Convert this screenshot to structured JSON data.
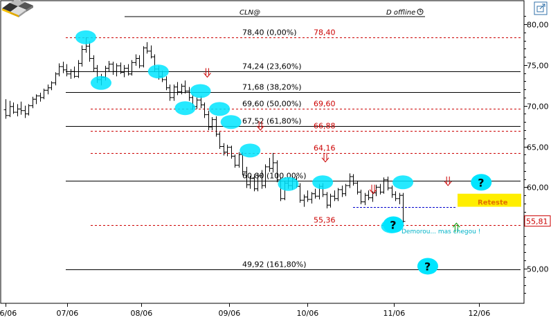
{
  "header": {
    "symbol": "CLN@",
    "status": "D offline",
    "clock_icon": "clock-icon",
    "logo_icon": "checkered-logo-icon",
    "corner_icon": "expand-icon"
  },
  "chart_data": {
    "type": "candlestick",
    "y_axis": {
      "ylim": [
        46.0,
        81.5
      ],
      "tick_labels": [
        "80,00",
        "75,00",
        "70,00",
        "65,00",
        "60,00",
        "50,00"
      ],
      "tick_values": [
        80,
        75,
        70,
        65,
        60,
        50
      ],
      "current_price_label": "55,81",
      "current_price": 55.81
    },
    "x_axis": {
      "tick_labels": [
        "06/06",
        "07/06",
        "08/06",
        "09/06",
        "10/06",
        "11/06",
        "12/06"
      ],
      "tick_index": [
        0,
        16.1,
        35.5,
        58.5,
        78.9,
        101.6,
        123.9
      ]
    },
    "fib_levels": [
      {
        "label": "78,40 (0,00%)",
        "price": 78.4,
        "style": "dashed",
        "color": "#cc0000",
        "extra": "78,40"
      },
      {
        "label": "74,24 (23,60%)",
        "price": 74.24,
        "style": "solid",
        "color": "#000000"
      },
      {
        "label": "71,68 (38,20%)",
        "price": 71.68,
        "style": "solid",
        "color": "#000000"
      },
      {
        "label": "69,60 (50,00%)",
        "price": 69.6,
        "style": "dashed",
        "color": "#cc0000",
        "extra": "69,60"
      },
      {
        "label": "67,52 (61,80%)",
        "price": 67.52,
        "style": "solid",
        "color": "#000000"
      },
      {
        "label": "",
        "price": 66.88,
        "style": "dashed",
        "color": "#cc0000",
        "extra": "66,88"
      },
      {
        "label": "",
        "price": 64.16,
        "style": "dashed",
        "color": "#cc0000",
        "extra": "64,16"
      },
      {
        "label": "60,80 (100,00%)",
        "price": 60.8,
        "style": "solid",
        "color": "#000000"
      },
      {
        "label": "",
        "price": 55.36,
        "style": "dashed",
        "color": "#cc0000",
        "extra": "55,36"
      },
      {
        "label": "49,92 (161,80%)",
        "price": 49.92,
        "style": "solid",
        "color": "#000000"
      }
    ],
    "support_line": {
      "price": 57.6,
      "style": "dashed",
      "color": "#0000cc"
    },
    "resistance_box": {
      "label": "Reteste",
      "price_top": 58.3,
      "price_bottom": 57.6,
      "color": "#ffee00"
    },
    "annotation_text": "Demorou... mas chegou !",
    "question_mark": "?",
    "bars": [
      [
        69.5,
        70.8,
        68.4,
        68.8
      ],
      [
        68.8,
        70.6,
        68.6,
        69.9
      ],
      [
        69.9,
        70.4,
        69.0,
        69.2
      ],
      [
        69.2,
        70.2,
        68.7,
        69.6
      ],
      [
        69.6,
        70.5,
        68.9,
        69.4
      ],
      [
        69.4,
        70.0,
        68.5,
        69.0
      ],
      [
        69.0,
        70.2,
        68.8,
        70.0
      ],
      [
        70.0,
        71.1,
        69.7,
        70.8
      ],
      [
        70.8,
        71.4,
        70.2,
        71.2
      ],
      [
        71.2,
        71.6,
        70.5,
        71.0
      ],
      [
        71.0,
        72.1,
        70.8,
        71.9
      ],
      [
        71.9,
        72.6,
        71.4,
        72.2
      ],
      [
        72.2,
        73.0,
        71.9,
        72.8
      ],
      [
        72.8,
        74.1,
        72.5,
        73.9
      ],
      [
        73.9,
        75.2,
        73.6,
        74.8
      ],
      [
        74.8,
        75.4,
        74.0,
        74.4
      ],
      [
        74.4,
        75.1,
        73.6,
        73.9
      ],
      [
        73.9,
        74.5,
        73.3,
        74.2
      ],
      [
        74.2,
        74.8,
        73.4,
        73.6
      ],
      [
        73.6,
        75.6,
        73.4,
        75.2
      ],
      [
        75.2,
        77.4,
        74.8,
        76.9
      ],
      [
        76.9,
        78.4,
        76.5,
        77.3
      ],
      [
        77.3,
        77.9,
        75.4,
        75.8
      ],
      [
        75.8,
        76.2,
        74.2,
        74.6
      ],
      [
        74.6,
        75.0,
        72.8,
        73.2
      ],
      [
        73.2,
        73.9,
        72.5,
        73.5
      ],
      [
        73.5,
        74.9,
        73.1,
        74.6
      ],
      [
        74.6,
        75.5,
        74.2,
        75.1
      ],
      [
        75.1,
        75.4,
        73.8,
        74.2
      ],
      [
        74.2,
        75.2,
        73.6,
        74.9
      ],
      [
        74.9,
        75.3,
        73.9,
        74.1
      ],
      [
        74.1,
        75.0,
        73.5,
        74.6
      ],
      [
        74.6,
        75.1,
        73.7,
        73.9
      ],
      [
        73.9,
        75.6,
        73.7,
        75.3
      ],
      [
        75.3,
        76.3,
        74.9,
        75.8
      ],
      [
        75.8,
        76.2,
        74.6,
        74.9
      ],
      [
        74.9,
        77.3,
        74.7,
        77.1
      ],
      [
        77.1,
        77.8,
        76.4,
        76.7
      ],
      [
        76.7,
        77.4,
        75.8,
        76.0
      ],
      [
        76.0,
        76.3,
        74.2,
        74.5
      ],
      [
        74.5,
        74.9,
        73.2,
        73.6
      ],
      [
        73.6,
        74.3,
        72.9,
        73.2
      ],
      [
        73.2,
        73.6,
        71.9,
        72.2
      ],
      [
        72.2,
        72.6,
        70.6,
        71.0
      ],
      [
        71.0,
        72.6,
        70.6,
        72.3
      ],
      [
        72.3,
        72.9,
        71.3,
        71.7
      ],
      [
        71.7,
        72.7,
        71.4,
        72.4
      ],
      [
        72.4,
        73.1,
        71.5,
        71.8
      ],
      [
        71.8,
        72.3,
        70.6,
        71.0
      ],
      [
        71.0,
        71.4,
        69.5,
        69.9
      ],
      [
        69.9,
        71.0,
        69.6,
        70.7
      ],
      [
        70.7,
        71.2,
        69.7,
        70.1
      ],
      [
        70.1,
        70.4,
        68.5,
        68.9
      ],
      [
        68.9,
        69.4,
        67.0,
        67.4
      ],
      [
        67.4,
        68.6,
        67.0,
        68.3
      ],
      [
        68.3,
        68.7,
        66.2,
        66.5
      ],
      [
        66.5,
        66.8,
        64.7,
        65.0
      ],
      [
        65.0,
        65.4,
        63.9,
        64.3
      ],
      [
        64.3,
        65.2,
        63.8,
        64.9
      ],
      [
        64.9,
        65.1,
        63.5,
        63.8
      ],
      [
        63.8,
        64.0,
        62.4,
        62.7
      ],
      [
        62.7,
        64.3,
        62.4,
        64.0
      ],
      [
        64.0,
        64.3,
        61.5,
        61.9
      ],
      [
        61.9,
        62.5,
        59.9,
        60.3
      ],
      [
        60.3,
        61.4,
        59.8,
        61.1
      ],
      [
        61.1,
        61.6,
        59.5,
        59.8
      ],
      [
        59.8,
        61.7,
        59.5,
        61.4
      ],
      [
        61.4,
        62.1,
        59.8,
        60.2
      ],
      [
        60.2,
        62.8,
        59.9,
        62.5
      ],
      [
        62.5,
        63.6,
        61.9,
        62.3
      ],
      [
        62.3,
        64.2,
        61.8,
        63.0
      ],
      [
        63.0,
        63.3,
        60.6,
        60.9
      ],
      [
        60.9,
        61.2,
        58.3,
        58.6
      ],
      [
        58.6,
        60.8,
        58.4,
        60.5
      ],
      [
        60.5,
        61.1,
        59.8,
        60.2
      ],
      [
        60.2,
        61.4,
        59.7,
        61.0
      ],
      [
        61.0,
        61.4,
        59.9,
        60.1
      ],
      [
        60.1,
        60.5,
        58.1,
        58.4
      ],
      [
        58.4,
        59.1,
        57.6,
        58.8
      ],
      [
        58.8,
        59.6,
        58.2,
        58.5
      ],
      [
        58.5,
        59.4,
        58.0,
        59.2
      ],
      [
        59.2,
        59.8,
        58.6,
        58.9
      ],
      [
        58.9,
        60.4,
        58.5,
        60.1
      ],
      [
        60.1,
        60.5,
        58.8,
        59.1
      ],
      [
        59.1,
        59.4,
        57.4,
        57.8
      ],
      [
        57.8,
        59.2,
        57.5,
        58.9
      ],
      [
        58.9,
        59.6,
        58.3,
        58.6
      ],
      [
        58.6,
        59.9,
        58.3,
        59.7
      ],
      [
        59.7,
        60.2,
        58.8,
        59.2
      ],
      [
        59.2,
        60.4,
        58.9,
        60.2
      ],
      [
        60.2,
        61.7,
        59.9,
        61.3
      ],
      [
        61.3,
        61.6,
        60.2,
        60.5
      ],
      [
        60.5,
        60.8,
        59.1,
        59.4
      ],
      [
        59.4,
        59.7,
        57.9,
        58.2
      ],
      [
        58.2,
        59.3,
        57.8,
        59.0
      ],
      [
        59.0,
        59.6,
        58.4,
        58.7
      ],
      [
        58.7,
        59.5,
        58.2,
        59.3
      ],
      [
        59.3,
        60.3,
        58.9,
        60.0
      ],
      [
        60.0,
        60.4,
        59.1,
        59.4
      ],
      [
        59.4,
        61.2,
        59.2,
        60.9
      ],
      [
        60.9,
        61.3,
        59.6,
        59.9
      ],
      [
        59.9,
        60.2,
        58.7,
        59.1
      ],
      [
        59.1,
        59.5,
        58.3,
        58.6
      ],
      [
        58.6,
        59.3,
        57.9,
        59.0
      ],
      [
        59.0,
        59.3,
        55.4,
        55.8
      ]
    ]
  }
}
